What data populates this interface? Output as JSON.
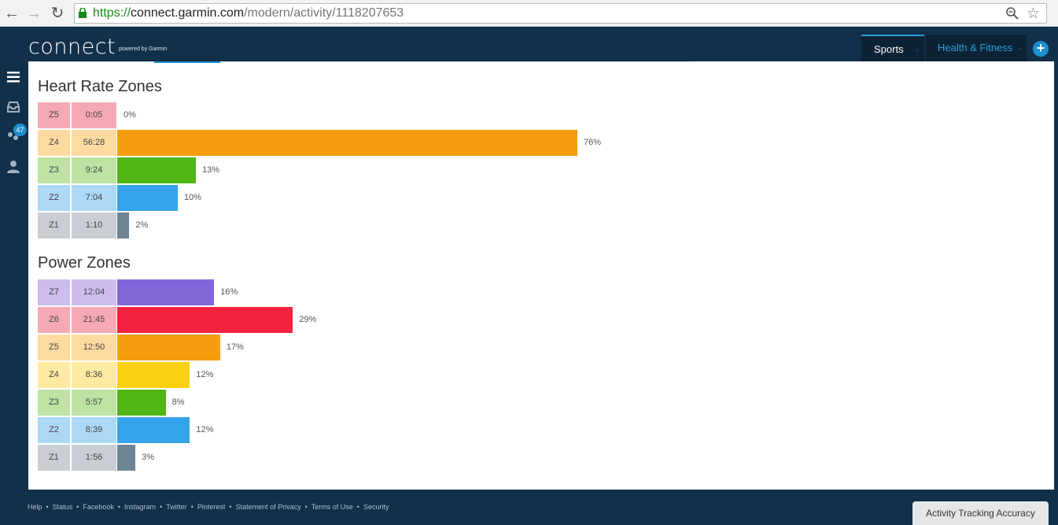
{
  "browser": {
    "url_proto": "https://",
    "url_host": "connect.garmin.com",
    "url_path": "/modern/activity/1118207653"
  },
  "header": {
    "logo_text": "connect",
    "powered_by": "powered by Garmin",
    "tabs": [
      {
        "label": "Sports",
        "active": true
      },
      {
        "label": "Health & Fitness",
        "active": false
      }
    ],
    "add_button": "+"
  },
  "sidebar": {
    "icons": [
      "menu-icon",
      "inbox-icon",
      "connections-icon",
      "profile-icon"
    ],
    "badge_count": "47"
  },
  "colors": {
    "accent": "#1b8fd0",
    "header_bg": "#12304a"
  },
  "heart_rate_zones": {
    "title": "Heart Rate Zones",
    "zones": [
      {
        "zone": "Z5",
        "time": "0:05",
        "pct": "0%",
        "value": 0,
        "label_color": "#f5a9b5",
        "bar_color": "#f5a9b5"
      },
      {
        "zone": "Z4",
        "time": "56:28",
        "pct": "76%",
        "value": 76,
        "label_color": "#fddba0",
        "bar_color": "#f59d0e"
      },
      {
        "zone": "Z3",
        "time": "9:24",
        "pct": "13%",
        "value": 13,
        "label_color": "#bde2a3",
        "bar_color": "#51b516"
      },
      {
        "zone": "Z2",
        "time": "7:04",
        "pct": "10%",
        "value": 10,
        "label_color": "#acd8f6",
        "bar_color": "#36a4ea"
      },
      {
        "zone": "Z1",
        "time": "1:10",
        "pct": "2%",
        "value": 2,
        "label_color": "#c9ced4",
        "bar_color": "#6d8494"
      }
    ]
  },
  "power_zones": {
    "title": "Power Zones",
    "zones": [
      {
        "zone": "Z7",
        "time": "12:04",
        "pct": "16%",
        "value": 16,
        "label_color": "#cdbcee",
        "bar_color": "#8365da"
      },
      {
        "zone": "Z6",
        "time": "21:45",
        "pct": "29%",
        "value": 29,
        "label_color": "#f5a9b5",
        "bar_color": "#f4223f"
      },
      {
        "zone": "Z5",
        "time": "12:50",
        "pct": "17%",
        "value": 17,
        "label_color": "#fddba0",
        "bar_color": "#f59d0e"
      },
      {
        "zone": "Z4",
        "time": "8:36",
        "pct": "12%",
        "value": 12,
        "label_color": "#feeaa0",
        "bar_color": "#f9d110"
      },
      {
        "zone": "Z3",
        "time": "5:57",
        "pct": "8%",
        "value": 8,
        "label_color": "#bde2a3",
        "bar_color": "#51b516"
      },
      {
        "zone": "Z2",
        "time": "8:39",
        "pct": "12%",
        "value": 12,
        "label_color": "#acd8f6",
        "bar_color": "#36a4ea"
      },
      {
        "zone": "Z1",
        "time": "1:56",
        "pct": "3%",
        "value": 3,
        "label_color": "#c9ced4",
        "bar_color": "#6d8494"
      }
    ]
  },
  "footer": {
    "links": [
      "Help",
      "Status",
      "Facebook",
      "Instagram",
      "Twitter",
      "Pinterest",
      "Statement of Privacy",
      "Terms of Use",
      "Security"
    ],
    "accuracy_button": "Activity Tracking Accuracy"
  }
}
